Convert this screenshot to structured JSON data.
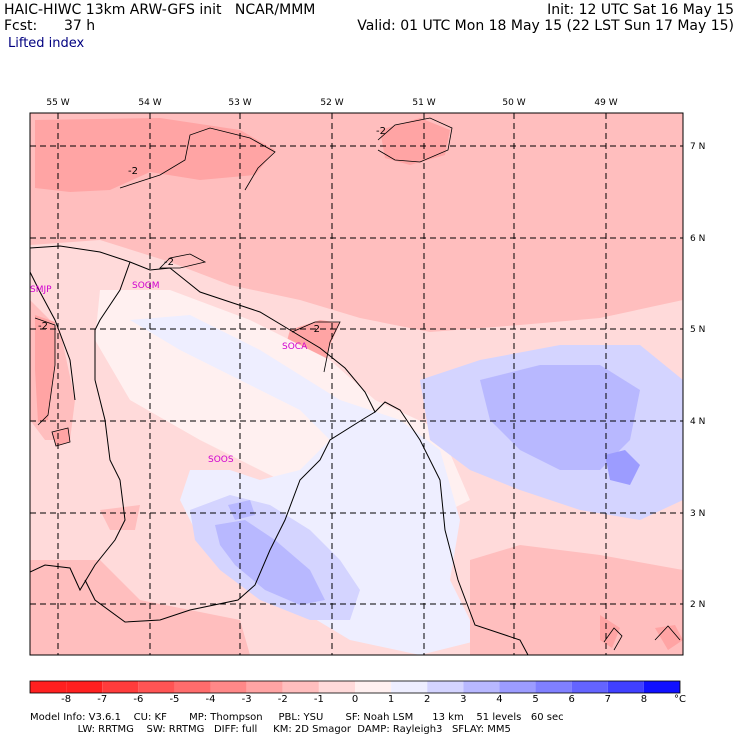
{
  "header": {
    "model_title": "HAIC-HIWC 13km ARW-GFS init   NCAR/MMM",
    "init": "Init: 12 UTC Sat 16 May 15",
    "fcst_label": "Fcst:",
    "fcst_value": "37 h",
    "valid": "Valid: 01 UTC Mon 18 May 15 (22 LST Sun 17 May 15)",
    "field": "Lifted index"
  },
  "map": {
    "lon_labels": [
      "55 W",
      "54 W",
      "53 W",
      "52 W",
      "51 W",
      "50 W",
      "49 W"
    ],
    "lat_labels": [
      "7 N",
      "6 N",
      "5 N",
      "4 N",
      "3 N",
      "2 N"
    ],
    "stations": [
      "SMJP",
      "SOGM",
      "SOCA",
      "SOOS"
    ],
    "contour_labels": [
      "-2",
      "-2",
      "-2",
      "-2",
      "-2"
    ]
  },
  "colorbar": {
    "labels": [
      "-8",
      "-7",
      "-6",
      "-5",
      "-4",
      "-3",
      "-2",
      "-1",
      "0",
      "1",
      "2",
      "3",
      "4",
      "5",
      "6",
      "7",
      "8"
    ],
    "unit": "°C",
    "colors": [
      "#ff2020",
      "#ff3c3c",
      "#ff5454",
      "#ff6c6c",
      "#ff8888",
      "#ffa4a4",
      "#ffbebe",
      "#ffdada",
      "#fff0f0",
      "#eeeeff",
      "#d4d4ff",
      "#b8b8ff",
      "#9c9cff",
      "#8080ff",
      "#6464ff",
      "#4040ff",
      "#1010ff"
    ]
  },
  "footer": {
    "line1": "Model Info: V3.6.1    CU: KF       MP: Thompson     PBL: YSU       SF: Noah LSM      13 km    51 levels   60 sec",
    "line2": "               LW: RRTMG    SW: RRTMG   DIFF: full     KM: 2D Smagor  DAMP: Rayleigh3   SFLAY: MM5"
  }
}
